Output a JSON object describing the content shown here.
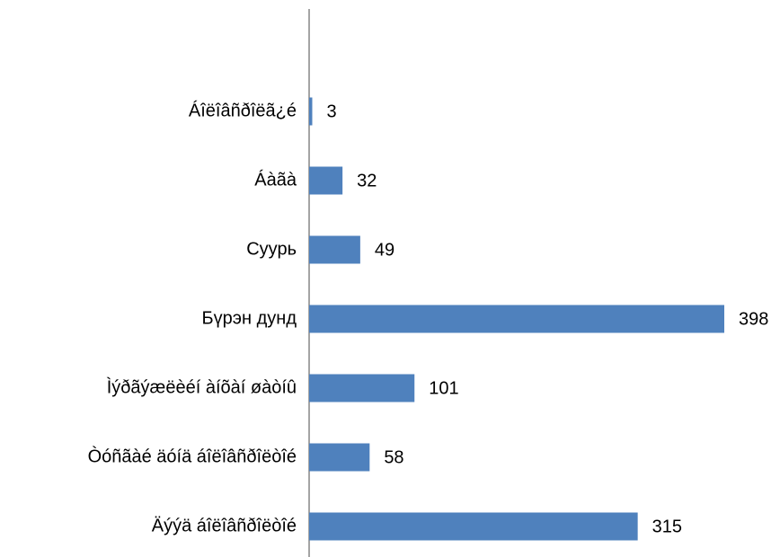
{
  "chart_data": {
    "type": "hbar",
    "categories": [
      "Áîëîâñðîëã¿é",
      "Áàãà",
      "Суурь",
      "Бүрэн дунд",
      "Ìýðãýæëèéí àíõàí øàòíû",
      "Òóñãàé äóíä áîëîâñðîëòîé",
      "Äýýä áîëîâñðîëòîé"
    ],
    "values": [
      3,
      32,
      49,
      398,
      101,
      58,
      315
    ],
    "color": "#4f81bd"
  }
}
